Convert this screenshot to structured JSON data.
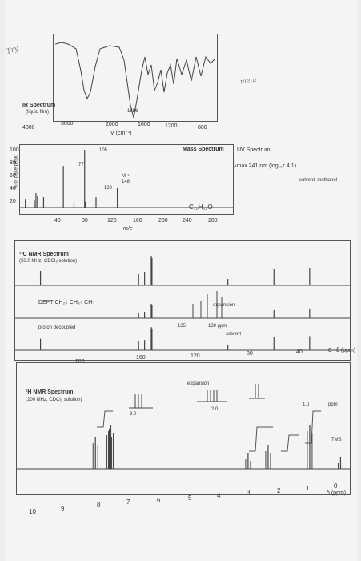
{
  "handwriting": {
    "try": "Try",
    "meta": "meta"
  },
  "ir": {
    "title": "IR Spectrum",
    "subtitle": "(liquid film)",
    "peak_label": "1686",
    "xticks": [
      "4000",
      "3000",
      "2000",
      "1600",
      "1200",
      "800"
    ],
    "xlabel": "V (cm⁻¹)"
  },
  "mass": {
    "title": "Mass Spectrum",
    "ylabel": "% of base peak",
    "yticks": [
      "100",
      "80",
      "60",
      "40",
      "20"
    ],
    "xticks": [
      "40",
      "80",
      "120",
      "160",
      "200",
      "240",
      "280"
    ],
    "xlabel": "m/e",
    "labels": {
      "p105": "105",
      "p77": "77",
      "mplus": "M·⁺",
      "m148": "148",
      "p120": "120"
    },
    "formula": "C₁₀H₁₂O"
  },
  "uv": {
    "title": "UV Spectrum",
    "lambda": "λmax 241 nm (log₁₀ε 4.1)",
    "solvent": "solvent: methanol"
  },
  "c13": {
    "title": "¹³C NMR Spectrum",
    "subtitle": "(50.0 MHz, CDCl₃ solution)",
    "dept": "DEPT  CH₂↓ CH₃↑ CH↑",
    "decoupled": "proton decoupled",
    "expansion": "expansion",
    "exp_ticks": [
      "135",
      "130 ppm"
    ],
    "solvent": "solvent",
    "xticks": [
      "200",
      "160",
      "120",
      "80",
      "40",
      "0"
    ],
    "xunit": "δ (ppm)"
  },
  "h1": {
    "title": "¹H NMR Spectrum",
    "subtitle": "(200 MHz, CDCl₃ solution)",
    "expansion": "expansion",
    "exp_labels": [
      "3.0",
      "2.0",
      "1.0",
      "ppm"
    ],
    "tms": "TMS",
    "xticks": [
      "10",
      "9",
      "8",
      "7",
      "6",
      "5",
      "4",
      "3",
      "2",
      "1",
      "0"
    ],
    "xunit": "δ (ppm)"
  },
  "chart_data": [
    {
      "type": "line",
      "title": "IR Spectrum",
      "xlabel": "V (cm⁻¹)",
      "x": [
        4000,
        3500,
        3100,
        3000,
        2950,
        2900,
        2800,
        2000,
        1800,
        1686,
        1600,
        1450,
        1380,
        1250,
        1200,
        1100,
        1000,
        900,
        800,
        750,
        700,
        600
      ],
      "y": [
        90,
        92,
        85,
        70,
        62,
        75,
        90,
        92,
        88,
        5,
        60,
        40,
        55,
        35,
        50,
        60,
        55,
        62,
        58,
        30,
        28,
        50
      ],
      "note_peak": 1686
    },
    {
      "type": "bar",
      "title": "Mass Spectrum",
      "xlabel": "m/e",
      "ylabel": "% of base peak",
      "x": [
        27,
        39,
        41,
        43,
        51,
        77,
        91,
        105,
        106,
        120,
        148
      ],
      "values": [
        15,
        12,
        25,
        20,
        18,
        72,
        8,
        100,
        10,
        18,
        35
      ],
      "ylim": [
        0,
        100
      ]
    },
    {
      "type": "bar",
      "title": "13C NMR Spectrum",
      "xlabel": "δ (ppm)",
      "x": [
        203,
        137,
        133,
        128.5,
        128,
        77,
        46,
        22
      ],
      "values": [
        45,
        35,
        40,
        90,
        85,
        20,
        50,
        55
      ]
    },
    {
      "type": "bar",
      "title": "1H NMR Spectrum",
      "xlabel": "δ (ppm)",
      "x": [
        7.95,
        7.5,
        7.45,
        3.0,
        2.35,
        1.0,
        0
      ],
      "values": [
        40,
        50,
        55,
        20,
        30,
        55,
        15
      ]
    }
  ]
}
